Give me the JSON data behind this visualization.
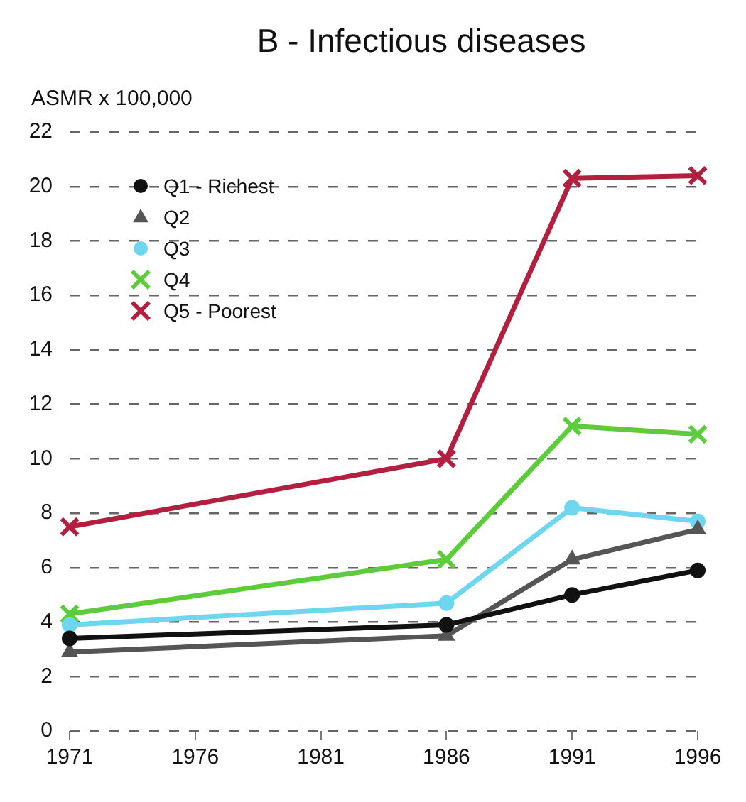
{
  "chart_data": {
    "type": "line",
    "title": "B - Infectious diseases",
    "ylabel": "ASMR x 100,000",
    "x": [
      1971,
      1986,
      1991,
      1996
    ],
    "xlim": [
      1971,
      1996
    ],
    "xticks": [
      1971,
      1976,
      1981,
      1986,
      1991,
      1996
    ],
    "ylim": [
      0,
      22
    ],
    "yticks": [
      0,
      2,
      4,
      6,
      8,
      10,
      12,
      14,
      16,
      18,
      20,
      22
    ],
    "grid": "y",
    "legend": "top left",
    "line_style": "solid",
    "series": [
      {
        "name": "Q1 - Richest",
        "color": "#111111",
        "marker": "circle",
        "values": [
          3.4,
          3.9,
          5.0,
          5.9
        ]
      },
      {
        "name": "Q2",
        "color": "#555555",
        "marker": "triangle",
        "values": [
          2.9,
          3.5,
          6.3,
          7.4
        ]
      },
      {
        "name": "Q3",
        "color": "#6ed6ee",
        "marker": "circle",
        "values": [
          3.9,
          4.7,
          8.2,
          7.7
        ]
      },
      {
        "name": "Q4",
        "color": "#5ccc3a",
        "marker": "cross",
        "values": [
          4.3,
          6.3,
          11.2,
          10.9
        ]
      },
      {
        "name": "Q5 - Poorest",
        "color": "#b3203f",
        "marker": "cross",
        "values": [
          7.5,
          10.0,
          20.3,
          20.4
        ]
      }
    ]
  }
}
